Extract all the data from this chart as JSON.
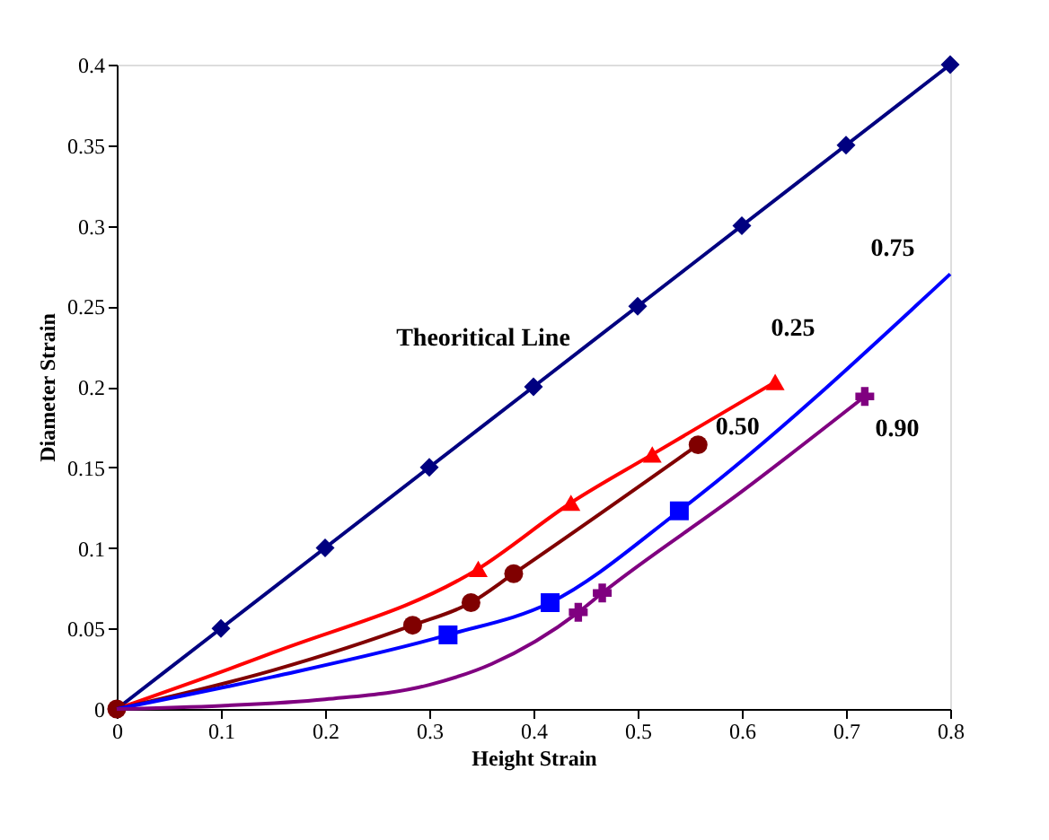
{
  "chart_data": {
    "type": "line",
    "xlabel": "Height Strain",
    "ylabel": "Diameter Strain",
    "xlim": [
      0,
      0.8
    ],
    "xticks": [
      0,
      0.1,
      0.2,
      0.3,
      0.4,
      0.5,
      0.6,
      0.7,
      0.8
    ],
    "ylim": [
      0,
      0.4
    ],
    "yticks": [
      0,
      0.05,
      0.1,
      0.15,
      0.2,
      0.25,
      0.3,
      0.35,
      0.4
    ],
    "grid": false,
    "line_style": "solid",
    "series": [
      {
        "name": "Theoritical Line",
        "marker": "diamond",
        "color": "#000080",
        "x": [
          0,
          0.1,
          0.2,
          0.3,
          0.4,
          0.5,
          0.6,
          0.7,
          0.8
        ],
        "values": [
          0,
          0.05,
          0.1,
          0.15,
          0.2,
          0.25,
          0.3,
          0.35,
          0.4
        ]
      },
      {
        "name": "0.25",
        "marker": "none",
        "color": "#ff0000",
        "x": [
          0,
          0.15,
          0.347,
          0.436,
          0.514,
          0.632
        ],
        "values": [
          0,
          0.035,
          0.087,
          0.128,
          0.158,
          0.203
        ]
      },
      {
        "type": "scatter",
        "marker": "triangle",
        "color": "#ff0000",
        "x": [
          0.347,
          0.436,
          0.514,
          0.632
        ],
        "values": [
          0.087,
          0.128,
          0.158,
          0.203
        ]
      },
      {
        "name": "0.50",
        "marker": "none",
        "color": "#800000",
        "x": [
          0,
          0.15,
          0.284,
          0.34,
          0.381,
          0.558
        ],
        "values": [
          0,
          0.024,
          0.052,
          0.066,
          0.084,
          0.164
        ]
      },
      {
        "type": "scatter",
        "marker": "circle",
        "color": "#800000",
        "x": [
          0,
          0.284,
          0.34,
          0.381,
          0.558
        ],
        "values": [
          0,
          0.052,
          0.066,
          0.084,
          0.164
        ]
      },
      {
        "name": "0.75",
        "marker": "none",
        "color": "#0000ff",
        "x": [
          0,
          0.15,
          0.318,
          0.416,
          0.54,
          0.8
        ],
        "values": [
          0,
          0.02,
          0.046,
          0.066,
          0.123,
          0.27
        ]
      },
      {
        "type": "scatter",
        "marker": "square",
        "color": "#0000ff",
        "x": [
          0.318,
          0.416,
          0.54
        ],
        "values": [
          0.046,
          0.066,
          0.123
        ]
      },
      {
        "name": "0.90",
        "marker": "none",
        "color": "#800080",
        "x": [
          0,
          0.1,
          0.2,
          0.3,
          0.36,
          0.443,
          0.466,
          0.6,
          0.718
        ],
        "values": [
          0,
          0.002,
          0.006,
          0.015,
          0.028,
          0.06,
          0.072,
          0.135,
          0.194
        ]
      },
      {
        "type": "scatter",
        "marker": "cross",
        "color": "#800080",
        "x": [
          0.443,
          0.466,
          0.718
        ],
        "values": [
          0.06,
          0.072,
          0.194
        ]
      }
    ]
  }
}
